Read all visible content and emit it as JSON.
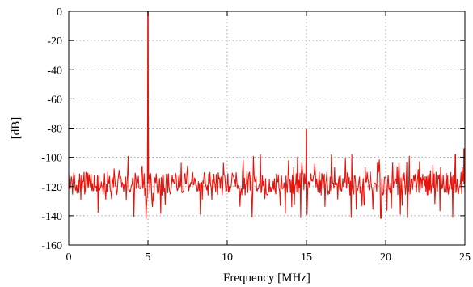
{
  "chart_data": {
    "type": "line",
    "xlabel": "Frequency [MHz]",
    "ylabel": "[dB]",
    "xlim": [
      0,
      25
    ],
    "ylim": [
      -160,
      0
    ],
    "x_ticks": [
      0,
      5,
      10,
      15,
      20,
      25
    ],
    "y_ticks": [
      0,
      -20,
      -40,
      -60,
      -80,
      -100,
      -120,
      -140,
      -160
    ],
    "x_tick_labels": [
      "0",
      "5",
      "10",
      "15",
      "20",
      "25"
    ],
    "y_tick_labels": [
      "0",
      "-20",
      "-40",
      "-60",
      "-80",
      "-100",
      "-120",
      "-140",
      "-160"
    ],
    "grid": true,
    "series": [
      {
        "color": "#e8140c",
        "noise_floor_db": -118,
        "noise_min_db": -142,
        "noise_max_db": -98,
        "peaks": [
          {
            "x": 5.0,
            "y": 0
          },
          {
            "x": 15.0,
            "y": -81
          },
          {
            "x": 24.4,
            "y": -98
          },
          {
            "x": 24.95,
            "y": -94
          }
        ],
        "x": [
          0,
          0.5,
          1,
          1.5,
          2,
          2.5,
          3,
          3.5,
          4,
          4.5,
          4.9,
          5.0,
          5.1,
          5.5,
          6,
          6.5,
          7,
          7.5,
          7.7,
          8,
          8.5,
          9,
          9.5,
          10,
          10.5,
          11,
          11.5,
          12,
          12.5,
          13,
          13.5,
          14,
          14.5,
          14.9,
          15.0,
          15.1,
          15.5,
          16,
          16.5,
          17,
          17.5,
          18,
          18.5,
          19,
          19.5,
          20,
          20.5,
          21,
          21.5,
          22,
          22.5,
          23,
          23.5,
          24,
          24.4,
          24.7,
          24.95,
          25
        ],
        "y": [
          -120,
          -112,
          -125,
          -110,
          -130,
          -116,
          -122,
          -108,
          -118,
          -105,
          -120,
          0,
          -115,
          -110,
          -121,
          -114,
          -126,
          -111,
          -137,
          -118,
          -124,
          -112,
          -120,
          -115,
          -127,
          -113,
          -119,
          -125,
          -110,
          -122,
          -116,
          -128,
          -112,
          -118,
          -81,
          -119,
          -123,
          -111,
          -126,
          -114,
          -120,
          -112,
          -127,
          -142,
          -115,
          -121,
          -110,
          -124,
          -116,
          -112,
          -122,
          -119,
          -113,
          -125,
          -98,
          -117,
          -94,
          -120
        ]
      }
    ]
  }
}
